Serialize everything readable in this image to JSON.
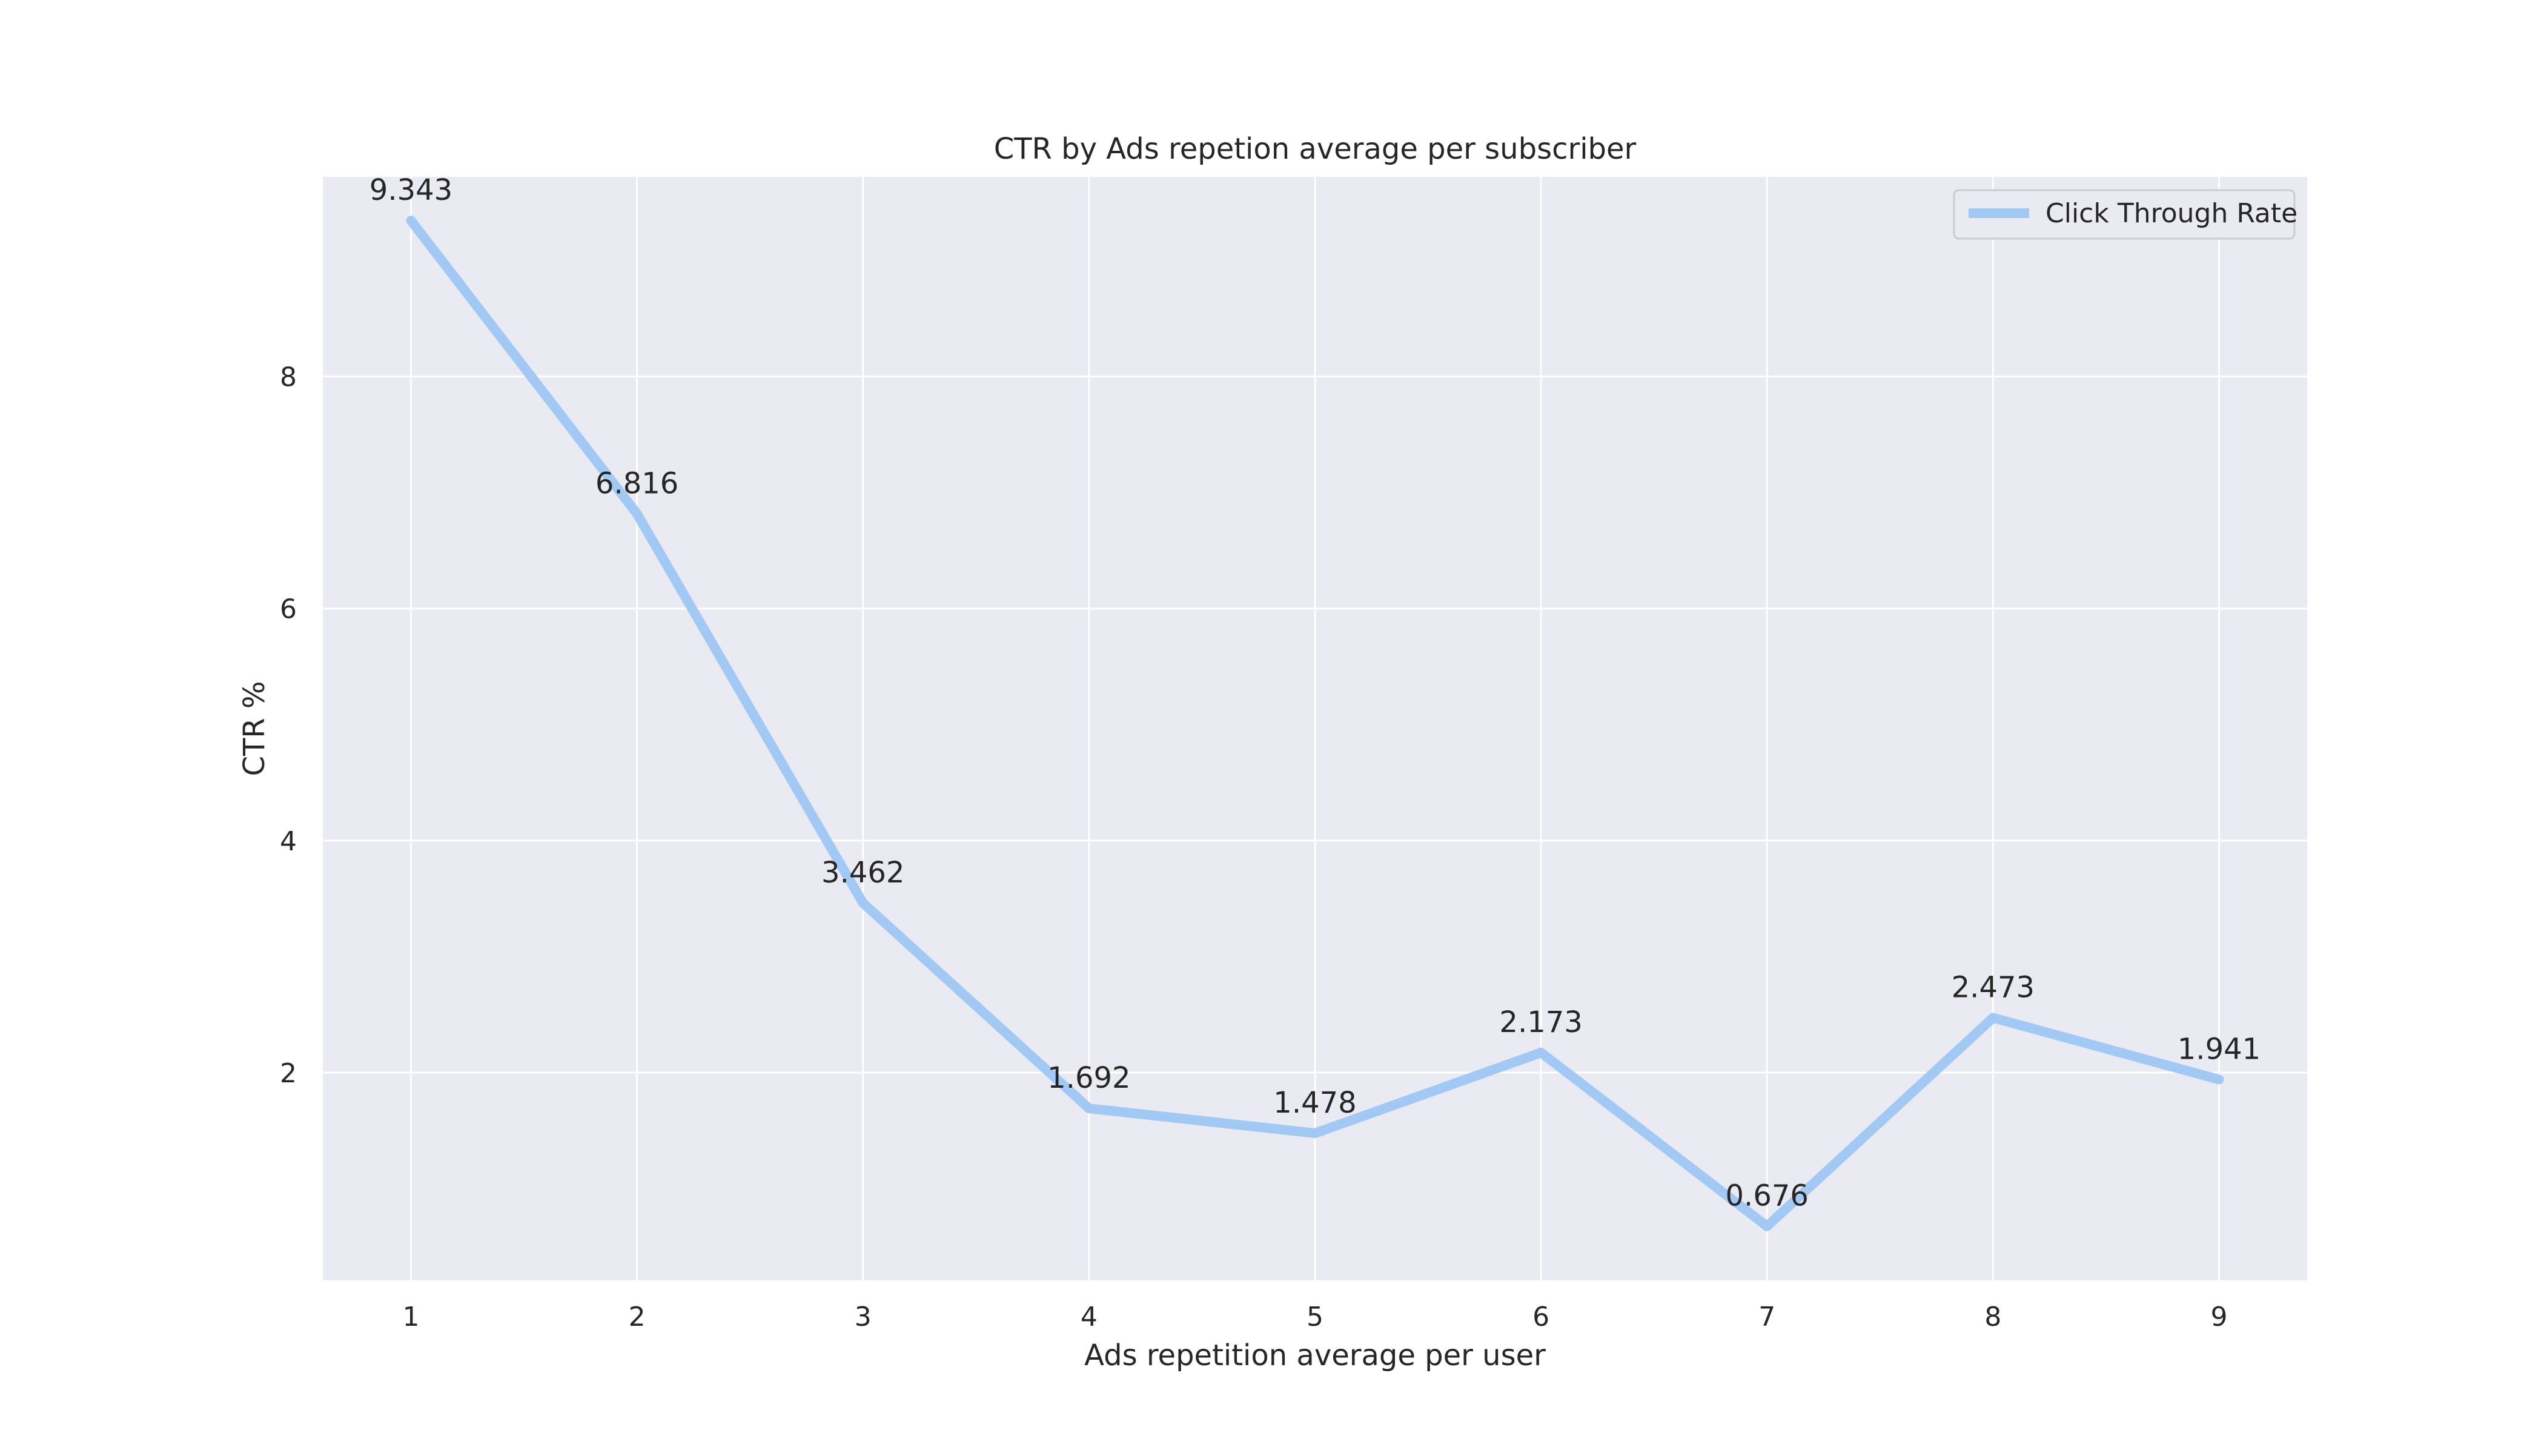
{
  "chart_data": {
    "type": "line",
    "title": "CTR by Ads repetion average per subscriber",
    "xlabel": "Ads repetition average per user",
    "ylabel": "CTR %",
    "x": [
      1,
      2,
      3,
      4,
      5,
      6,
      7,
      8,
      9
    ],
    "xticks": [
      "1",
      "2",
      "3",
      "4",
      "5",
      "6",
      "7",
      "8",
      "9"
    ],
    "yticks": [
      "2",
      "4",
      "6",
      "8"
    ],
    "xlim": [
      0.61,
      9.39
    ],
    "ylim": [
      0.21,
      9.72
    ],
    "grid": true,
    "legend_position": "top-right",
    "series": [
      {
        "name": "Click Through Rate",
        "color": "#a1c9f4",
        "values": [
          9.343,
          6.816,
          3.462,
          1.692,
          1.478,
          2.173,
          0.676,
          2.473,
          1.941
        ],
        "labels": [
          "9.343",
          "6.816",
          "3.462",
          "1.692",
          "1.478",
          "2.173",
          "0.676",
          "2.473",
          "1.941"
        ]
      }
    ],
    "colors": {
      "plot_background": "#eaeaf2",
      "grid": "#ffffff",
      "text": "#262626"
    }
  }
}
